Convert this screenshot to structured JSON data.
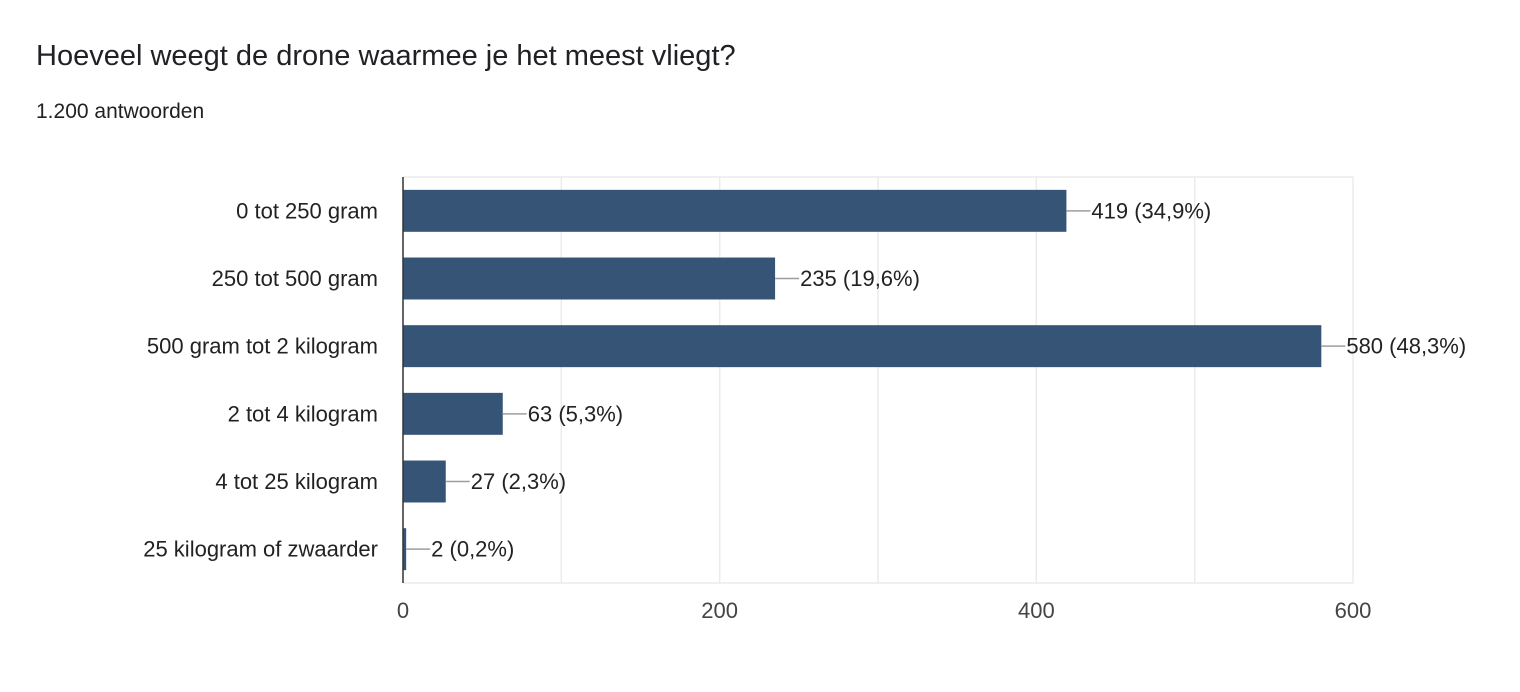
{
  "header": {
    "title": "Hoeveel weegt de drone waarmee je het meest vliegt?",
    "subtitle": "1.200 antwoorden"
  },
  "colors": {
    "bar": "#365475",
    "grid": "#ebebeb",
    "axis": "#333333",
    "leader": "#9e9e9e",
    "text": "#222222"
  },
  "chart_data": {
    "type": "bar",
    "orientation": "horizontal",
    "title": "",
    "xlabel": "",
    "ylabel": "",
    "categories": [
      "0 tot 250 gram",
      "250 tot 500 gram",
      "500 gram tot 2 kilogram",
      "2 tot 4 kilogram",
      "4 tot 25 kilogram",
      "25 kilogram of zwaarder"
    ],
    "values": [
      419,
      235,
      580,
      63,
      27,
      2
    ],
    "data_labels": [
      "419 (34,9%)",
      "235 (19,6%)",
      "580 (48,3%)",
      "63 (5,3%)",
      "27 (2,3%)",
      "2 (0,2%)"
    ],
    "xlim": [
      0,
      600
    ],
    "xticks": [
      0,
      200,
      400,
      600
    ],
    "grid": true,
    "minor_grid": true,
    "legend": "none"
  }
}
